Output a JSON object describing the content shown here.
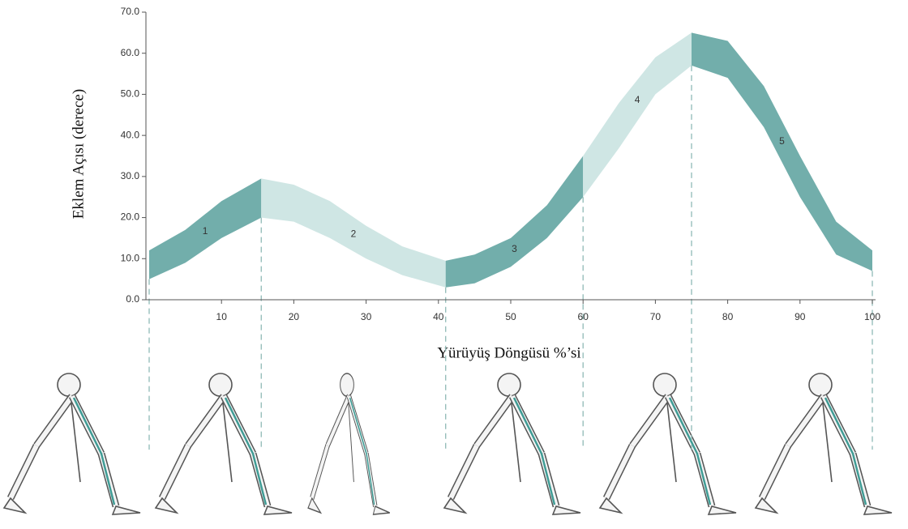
{
  "chart_data": {
    "type": "band",
    "y_label": "Eklem Açısı (derece)",
    "x_label": "Yürüyüş Döngüsü %’si",
    "x": [
      0,
      5,
      10,
      15.5,
      20,
      25,
      30,
      35,
      41,
      45,
      50,
      55,
      60,
      65,
      70,
      75,
      80,
      85,
      90,
      95,
      100
    ],
    "upper": [
      12,
      17,
      24,
      29.5,
      28,
      24,
      18,
      13,
      9.5,
      11,
      15,
      23,
      35,
      48,
      59,
      65,
      63,
      52,
      35,
      19,
      12
    ],
    "lower": [
      5,
      9,
      15,
      20,
      19,
      15,
      10,
      6,
      3,
      4,
      8,
      15,
      25,
      37,
      50,
      57,
      54,
      42,
      25,
      11,
      7
    ],
    "phases": [
      {
        "label": "1",
        "start": 0,
        "end": 15.5,
        "color": "#72aeab"
      },
      {
        "label": "2",
        "start": 15.5,
        "end": 41,
        "color": "#cfe6e4"
      },
      {
        "label": "3",
        "start": 41,
        "end": 60,
        "color": "#72aeab"
      },
      {
        "label": "4",
        "start": 60,
        "end": 75,
        "color": "#cfe6e4"
      },
      {
        "label": "5",
        "start": 75,
        "end": 100,
        "color": "#72aeab"
      }
    ],
    "xlim": [
      0,
      100
    ],
    "ylim": [
      0,
      70
    ],
    "xticks": [
      10,
      20,
      30,
      40,
      50,
      60,
      70,
      80,
      90,
      100
    ],
    "yticks": [
      {
        "value": 0,
        "label": "0.0"
      },
      {
        "value": 10,
        "label": "10.0"
      },
      {
        "value": 20,
        "label": "20.0"
      },
      {
        "value": 30,
        "label": "30.0"
      },
      {
        "value": 40,
        "label": "40.0"
      },
      {
        "value": 50,
        "label": "50.0"
      },
      {
        "value": 60,
        "label": "60.0"
      },
      {
        "value": 70,
        "label": "70.0"
      }
    ]
  }
}
